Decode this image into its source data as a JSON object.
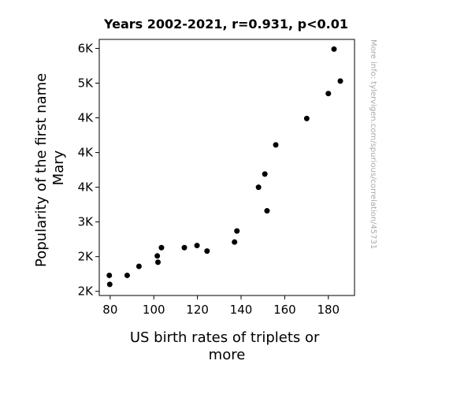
{
  "chart_data": {
    "type": "scatter",
    "title": "Years 2002-2021, r=0.931, p<0.01",
    "xlabel_lines": [
      "US birth rates of triplets or",
      "more"
    ],
    "ylabel_lines": [
      "Popularity of the first name",
      "Mary"
    ],
    "xlim": [
      75,
      192
    ],
    "ylim": [
      1940,
      5630
    ],
    "x_ticks": [
      {
        "value": 80,
        "label": "80"
      },
      {
        "value": 100,
        "label": "100"
      },
      {
        "value": 120,
        "label": "120"
      },
      {
        "value": 140,
        "label": "140"
      },
      {
        "value": 160,
        "label": "160"
      },
      {
        "value": 180,
        "label": "180"
      }
    ],
    "y_ticks": [
      {
        "value": 2000,
        "label": "2K"
      },
      {
        "value": 2500,
        "label": "2K"
      },
      {
        "value": 3000,
        "label": "3K"
      },
      {
        "value": 3500,
        "label": "4K"
      },
      {
        "value": 4000,
        "label": "4K"
      },
      {
        "value": 4500,
        "label": "4K"
      },
      {
        "value": 5000,
        "label": "5K"
      },
      {
        "value": 5500,
        "label": "6K"
      }
    ],
    "points": [
      {
        "x": 79.6,
        "y": 2230
      },
      {
        "x": 79.8,
        "y": 2100
      },
      {
        "x": 87.8,
        "y": 2230
      },
      {
        "x": 93.2,
        "y": 2360
      },
      {
        "x": 101.6,
        "y": 2510
      },
      {
        "x": 101.9,
        "y": 2420
      },
      {
        "x": 103.5,
        "y": 2630
      },
      {
        "x": 114.0,
        "y": 2630
      },
      {
        "x": 119.8,
        "y": 2660
      },
      {
        "x": 124.4,
        "y": 2580
      },
      {
        "x": 137.0,
        "y": 2710
      },
      {
        "x": 138.1,
        "y": 2870
      },
      {
        "x": 148.0,
        "y": 3500
      },
      {
        "x": 150.9,
        "y": 3690
      },
      {
        "x": 151.9,
        "y": 3160
      },
      {
        "x": 155.9,
        "y": 4110
      },
      {
        "x": 170.1,
        "y": 4490
      },
      {
        "x": 180.0,
        "y": 4850
      },
      {
        "x": 182.6,
        "y": 5490
      },
      {
        "x": 185.5,
        "y": 5030
      }
    ],
    "grid": false,
    "marker_color": "#000000"
  },
  "watermark": "More info: tylervigen.com/spurious/correlation/45731"
}
